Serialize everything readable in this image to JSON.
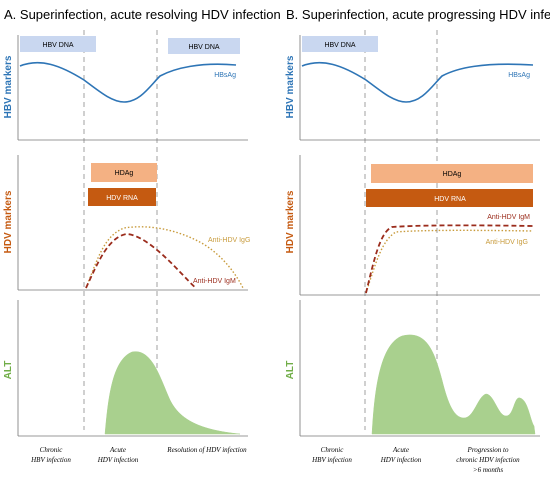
{
  "colors": {
    "hbv_blue": "#2E75B6",
    "hbv_band": "#C9D7F0",
    "hdv_orange": "#C55A11",
    "hdag_fill": "#F4B183",
    "hdvrna_fill": "#C55A11",
    "igg_dot": "#C89B3C",
    "igm_dash": "#9B2C1C",
    "alt_green": "#70AD47",
    "alt_fill": "#A9D08E",
    "axis": "#555555",
    "divider": "#888888"
  },
  "panels": [
    {
      "id": "A",
      "title": "A.   Superinfection, acute resolving HDV infection",
      "hbv_axis_label": "HBV markers",
      "hdv_axis_label": "HDV markers",
      "alt_axis_label": "ALT",
      "hbv_bands": [
        "HBV DNA",
        "HBV DNA"
      ],
      "hbsag_label": "HBsAg",
      "hdag_label": "HDAg",
      "hdvrna_label": "HDV RNA",
      "igg_label": "Anti-HDV IgG",
      "igm_label": "Anti-HDV IgM",
      "phases": [
        {
          "line1": "Chronic",
          "line2": "HBV infection"
        },
        {
          "line1": "Acute",
          "line2": "HDV infection"
        },
        {
          "line1": "Resolution of HDV infection",
          "line2": ""
        }
      ]
    },
    {
      "id": "B",
      "title": "B.  Superinfection, acute progressing HDV infection",
      "hbv_axis_label": "HBV markers",
      "hdv_axis_label": "HDV markers",
      "alt_axis_label": "ALT",
      "hbv_bands": [
        "HBV DNA"
      ],
      "hbsag_label": "HBsAg",
      "hdag_label": "HDAg",
      "hdvrna_label": "HDV RNA",
      "igm_label": "Anti-HDV IgM",
      "igg_label": "Anti-HDV IgG",
      "phases": [
        {
          "line1": "Chronic",
          "line2": "HBV infection"
        },
        {
          "line1": "Acute",
          "line2": "HDV infection"
        },
        {
          "line1": "Progression to",
          "line2": "chronic HDV infection",
          "line3": ">6 months"
        }
      ]
    }
  ]
}
